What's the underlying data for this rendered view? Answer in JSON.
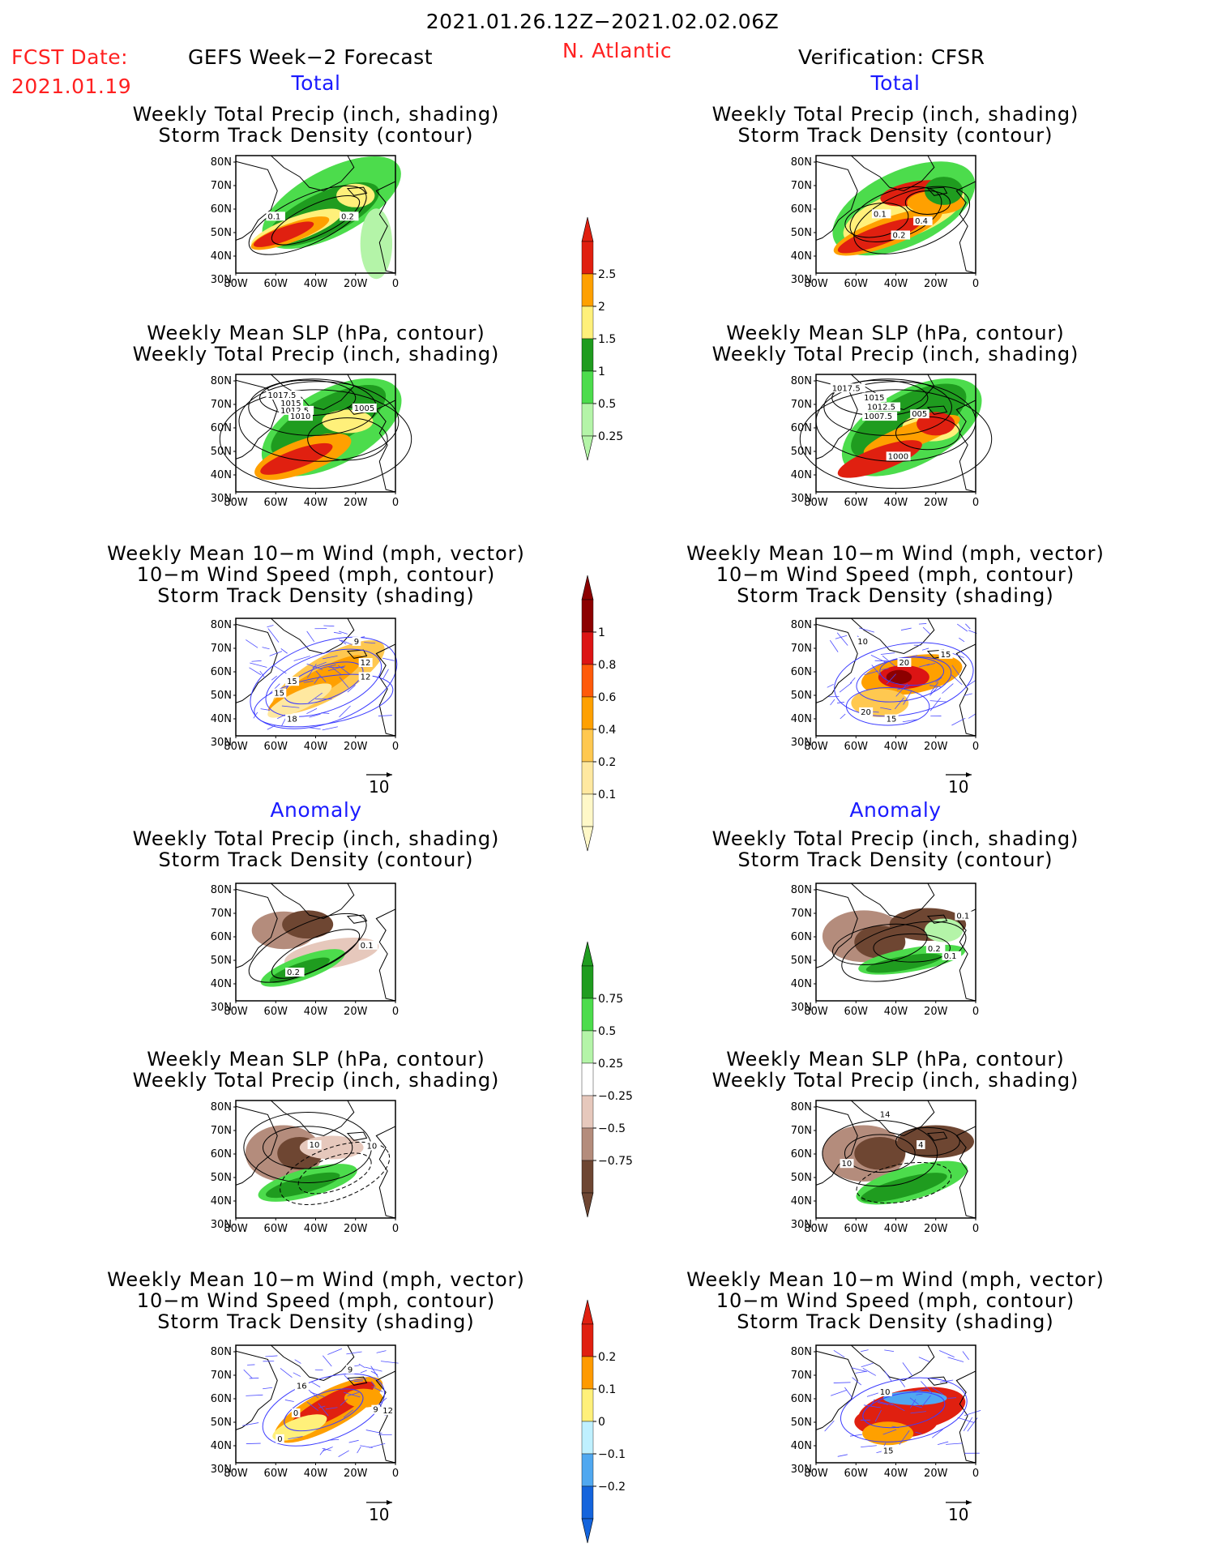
{
  "header": {
    "date_range": "2021.01.26.12Z−2021.02.02.06Z",
    "fcst_label": "FCST Date:",
    "fcst_date": "2021.01.19",
    "left_title": "GEFS Week−2 Forecast",
    "region": "N. Atlantic",
    "right_title": "Verification: CFSR"
  },
  "sections": {
    "total": "Total",
    "anomaly": "Anomaly"
  },
  "titles": {
    "precip_track": [
      "Weekly Total Precip (inch, shading)",
      "Storm Track Density (contour)"
    ],
    "slp_precip": [
      "Weekly Mean SLP (hPa, contour)",
      "Weekly Total Precip (inch, shading)"
    ],
    "wind_track": [
      "Weekly Mean 10−m Wind (mph, vector)",
      "10−m Wind Speed (mph, contour)",
      "Storm Track Density (shading)"
    ]
  },
  "axes": {
    "lat_labels": [
      "80N",
      "70N",
      "60N",
      "50N",
      "40N",
      "30N"
    ],
    "lon_labels": [
      "80W",
      "60W",
      "40W",
      "20W",
      "0"
    ]
  },
  "vector_ref": "10",
  "colorbars": [
    {
      "id": "precip-total",
      "labels": [
        "2.5",
        "2",
        "1.5",
        "1",
        "0.5",
        "0.25"
      ],
      "colors": [
        "#e02010",
        "#ffa000",
        "#fff07a",
        "#1f9c1f",
        "#4cdc4c",
        "#b4f4a8"
      ]
    },
    {
      "id": "track-total",
      "labels": [
        "1",
        "0.8",
        "0.6",
        "0.4",
        "0.2",
        "0.1"
      ],
      "colors": [
        "#8c0000",
        "#dc1414",
        "#ff5a0a",
        "#ffa000",
        "#ffc850",
        "#ffe8a0",
        "#fff8c8"
      ]
    },
    {
      "id": "precip-anom",
      "labels": [
        "0.75",
        "0.5",
        "0.25",
        "−0.25",
        "−0.5",
        "−0.75"
      ],
      "colors": [
        "#1f9c1f",
        "#4cdc4c",
        "#b4f4a8",
        "#ffffff",
        "#e6c8bc",
        "#b48c7c",
        "#6e4632"
      ]
    },
    {
      "id": "track-anom",
      "labels": [
        "0.2",
        "0.1",
        "0",
        "−0.1",
        "−0.2"
      ],
      "colors": [
        "#e02010",
        "#ff9a00",
        "#fff07a",
        "#bff0ff",
        "#50a8f0",
        "#1464dc"
      ]
    }
  ],
  "contour_labels": {
    "p1_left": [
      "0.1",
      "0.2"
    ],
    "p1_right": [
      "0.1",
      "0.4",
      "0.2"
    ],
    "p2_left": [
      "1017.5",
      "1015",
      "1012.5",
      "1010",
      "1005"
    ],
    "p2_right": [
      "1017.5",
      "1015",
      "1012.5",
      "1007.5",
      "005",
      "1000"
    ],
    "p3_left": [
      "9",
      "12",
      "15",
      "12",
      "15",
      "18"
    ],
    "p3_right": [
      "10",
      "15",
      "20",
      "20",
      "15"
    ],
    "p4_left": [
      "0.1",
      "0.2"
    ],
    "p4_right": [
      "0.1",
      "0.2",
      "0.1"
    ],
    "p5_left": [
      "10",
      "10"
    ],
    "p5_right": [
      "14",
      "4",
      "10"
    ],
    "p6_left": [
      "16",
      "9",
      "0",
      "9",
      "12",
      "0"
    ],
    "p6_right": [
      "10",
      "15"
    ]
  }
}
